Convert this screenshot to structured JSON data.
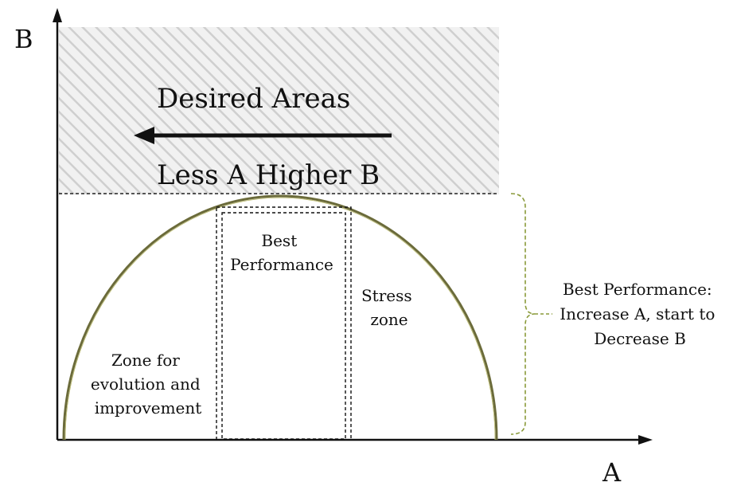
{
  "axes": {
    "y_label": "B",
    "x_label": "A"
  },
  "desired_region": {
    "title": "Desired Areas",
    "subtitle": "Less A Higher B",
    "arrow_direction": "left"
  },
  "zones": {
    "left": [
      "Zone for",
      "evolution and",
      "improvement"
    ],
    "center": [
      "Best",
      "Performance"
    ],
    "right": [
      "Stress",
      "zone"
    ]
  },
  "bracket_note": [
    "Best Performance:",
    "Increase A, start to",
    "Decrease B"
  ],
  "colors": {
    "curve": "#6b6b3a",
    "bracket": "#8a9a3a",
    "hatch": "#cfcfcf",
    "hatch_bg": "#f1f1f1",
    "ink": "#111111"
  }
}
